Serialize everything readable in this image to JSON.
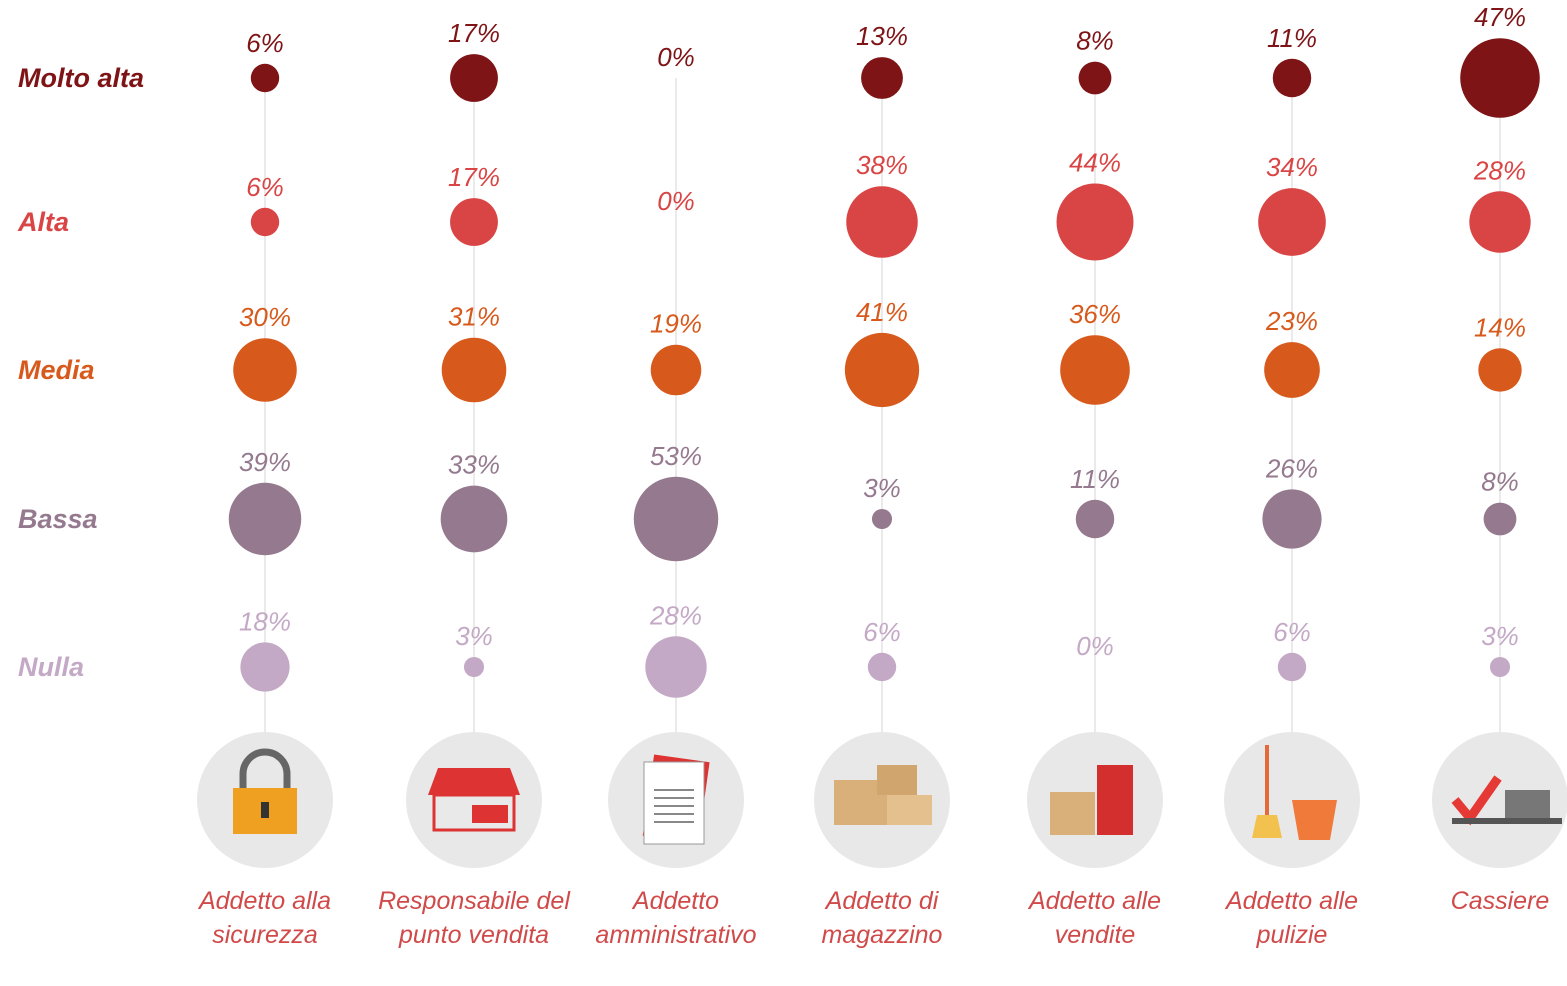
{
  "chart_data": {
    "type": "bubble",
    "categories": [
      "Addetto alla sicurezza",
      "Responsabile del punto vendita",
      "Addetto amministrativo",
      "Addetto di magazzino",
      "Addetto alle vendite",
      "Addetto alle pulizie",
      "Cassiere"
    ],
    "series": [
      {
        "name": "Molto alta",
        "color": "#7f1416",
        "values": [
          6,
          17,
          0,
          13,
          8,
          11,
          47
        ],
        "value_labels": [
          "6%",
          "17%",
          "0%",
          "13%",
          "8%",
          "11%",
          "47%"
        ]
      },
      {
        "name": "Alta",
        "color": "#d94545",
        "values": [
          6,
          17,
          0,
          38,
          44,
          34,
          28
        ],
        "value_labels": [
          "6%",
          "17%",
          "0%",
          "38%",
          "44%",
          "34%",
          "28%"
        ]
      },
      {
        "name": "Media",
        "color": "#d75a1c",
        "values": [
          30,
          31,
          19,
          41,
          36,
          23,
          14
        ],
        "value_labels": [
          "30%",
          "31%",
          "19%",
          "41%",
          "36%",
          "23%",
          "14%"
        ]
      },
      {
        "name": "Bassa",
        "color": "#95798f",
        "values": [
          39,
          33,
          53,
          3,
          11,
          26,
          8
        ],
        "value_labels": [
          "39%",
          "33%",
          "53%",
          "3%",
          "11%",
          "26%",
          "8%"
        ]
      },
      {
        "name": "Nulla",
        "color": "#c4a9c6",
        "values": [
          18,
          3,
          28,
          6,
          0,
          6,
          3
        ],
        "value_labels": [
          "18%",
          "3%",
          "28%",
          "6%",
          "0%",
          "6%",
          "3%"
        ]
      }
    ]
  }
}
